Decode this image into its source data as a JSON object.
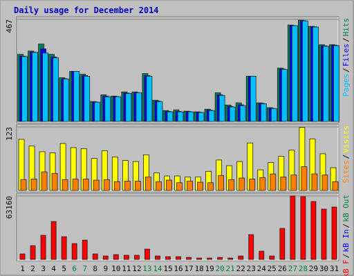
{
  "title": "Daily usage for December 2014",
  "chart_data": [
    {
      "type": "bar",
      "categories": [
        "1",
        "2",
        "3",
        "4",
        "5",
        "6",
        "7",
        "8",
        "9",
        "10",
        "11",
        "12",
        "13",
        "14",
        "15",
        "16",
        "17",
        "18",
        "19",
        "20",
        "21",
        "22",
        "23",
        "24",
        "25",
        "26",
        "27",
        "28",
        "29",
        "30",
        "31"
      ],
      "category_colors": [
        "#000000",
        "#000000",
        "#000000",
        "#000000",
        "#000000",
        "#008040",
        "#008040",
        "#000000",
        "#000000",
        "#000000",
        "#000000",
        "#000000",
        "#008040",
        "#008040",
        "#000000",
        "#000000",
        "#000000",
        "#000000",
        "#000000",
        "#008040",
        "#008040",
        "#000000",
        "#000000",
        "#000000",
        "#000000",
        "#000000",
        "#008040",
        "#008040",
        "#000000",
        "#000000",
        "#000000"
      ],
      "ylim": [
        0,
        467
      ],
      "yticks": [
        467
      ],
      "legend_separator": "/",
      "series": [
        {
          "name": "Hits",
          "color": "#00805c",
          "values": [
            307,
            322,
            354,
            307,
            200,
            229,
            216,
            91,
            122,
            116,
            135,
            135,
            219,
            97,
            50,
            53,
            47,
            44,
            56,
            131,
            75,
            85,
            207,
            85,
            63,
            244,
            441,
            463,
            435,
            351,
            351
          ]
        },
        {
          "name": "Files",
          "color": "#0000ff",
          "values": [
            299,
            318,
            332,
            295,
            196,
            229,
            210,
            89,
            116,
            114,
            130,
            132,
            210,
            93,
            46,
            46,
            45,
            42,
            52,
            122,
            69,
            76,
            207,
            83,
            60,
            240,
            439,
            461,
            433,
            346,
            349
          ]
        },
        {
          "name": "Pages",
          "color": "#00c0ff",
          "values": [
            297,
            316,
            313,
            291,
            194,
            229,
            207,
            88,
            113,
            113,
            128,
            131,
            207,
            91,
            44,
            44,
            44,
            41,
            50,
            119,
            66,
            72,
            207,
            81,
            59,
            238,
            438,
            460,
            432,
            344,
            347
          ]
        }
      ]
    },
    {
      "type": "bar",
      "ylim": [
        0,
        123
      ],
      "yticks": [
        123
      ],
      "legend_separator": "/",
      "series": [
        {
          "name": "Visits",
          "color": "#ffff00",
          "values": [
            99,
            86,
            75,
            73,
            91,
            83,
            81,
            62,
            77,
            65,
            58,
            56,
            69,
            34,
            28,
            28,
            26,
            26,
            37,
            59,
            48,
            56,
            92,
            40,
            54,
            66,
            78,
            122,
            100,
            71,
            44
          ]
        },
        {
          "name": "Sites",
          "color": "#ff8000",
          "values": [
            21,
            22,
            36,
            33,
            21,
            22,
            22,
            20,
            21,
            17,
            18,
            18,
            26,
            17,
            20,
            15,
            18,
            16,
            15,
            29,
            21,
            24,
            22,
            25,
            32,
            26,
            30,
            46,
            32,
            30,
            17
          ]
        }
      ]
    },
    {
      "type": "bar",
      "ylim": [
        0,
        63160
      ],
      "yticks": [
        63160
      ],
      "legend_separator": "/",
      "series": [
        {
          "name": "kB F",
          "color": "#ff0000",
          "values": [
            5490,
            13730,
            24030,
            37760,
            22650,
            15790,
            19220,
            5490,
            3430,
            4800,
            4120,
            4120,
            10300,
            3430,
            2750,
            2750,
            2060,
            1370,
            1370,
            2060,
            1370,
            3430,
            24710,
            8240,
            3430,
            30890,
            63160,
            62470,
            57670,
            50110,
            52170
          ]
        }
      ],
      "legend_extra": [
        {
          "name": "kB In",
          "color": "#0000ff"
        },
        {
          "name": "kB Out",
          "color": "#008040"
        }
      ]
    }
  ]
}
